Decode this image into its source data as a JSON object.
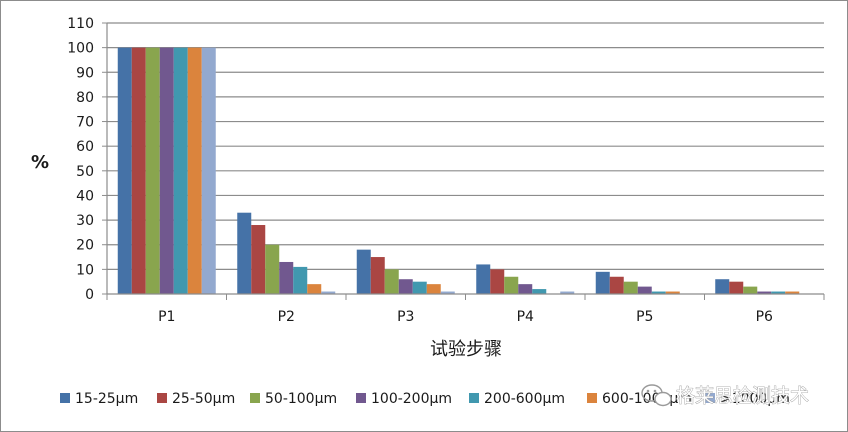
{
  "chart_data": {
    "type": "bar",
    "title": "",
    "ylabel": "%",
    "xlabel": "试验步骤",
    "ylim": [
      0,
      110
    ],
    "yticks": [
      0,
      10,
      20,
      30,
      40,
      50,
      60,
      70,
      80,
      90,
      100,
      110
    ],
    "grid": true,
    "legend_position": "bottom",
    "categories": [
      "P1",
      "P2",
      "P3",
      "P4",
      "P5",
      "P6"
    ],
    "series": [
      {
        "name": "15-25μm",
        "color": "#4572a7",
        "values": [
          100,
          33,
          18,
          12,
          9,
          6
        ]
      },
      {
        "name": "25-50μm",
        "color": "#aa4643",
        "values": [
          100,
          28,
          15,
          10,
          7,
          5
        ]
      },
      {
        "name": "50-100μm",
        "color": "#89a54e",
        "values": [
          100,
          20,
          10,
          7,
          5,
          3
        ]
      },
      {
        "name": "100-200μm",
        "color": "#71588f",
        "values": [
          100,
          13,
          6,
          4,
          3,
          1
        ]
      },
      {
        "name": "200-600μm",
        "color": "#4198af",
        "values": [
          100,
          11,
          5,
          2,
          1,
          1
        ]
      },
      {
        "name": "600-1000μm",
        "color": "#db843d",
        "values": [
          100,
          4,
          4,
          0,
          1,
          1
        ]
      },
      {
        "name": ">1000μm",
        "color": "#93a9cf",
        "values": [
          100,
          1,
          1,
          1,
          0,
          0
        ]
      }
    ]
  },
  "watermark": {
    "text": "格莱思检测技术",
    "icon": "wechat-icon"
  }
}
